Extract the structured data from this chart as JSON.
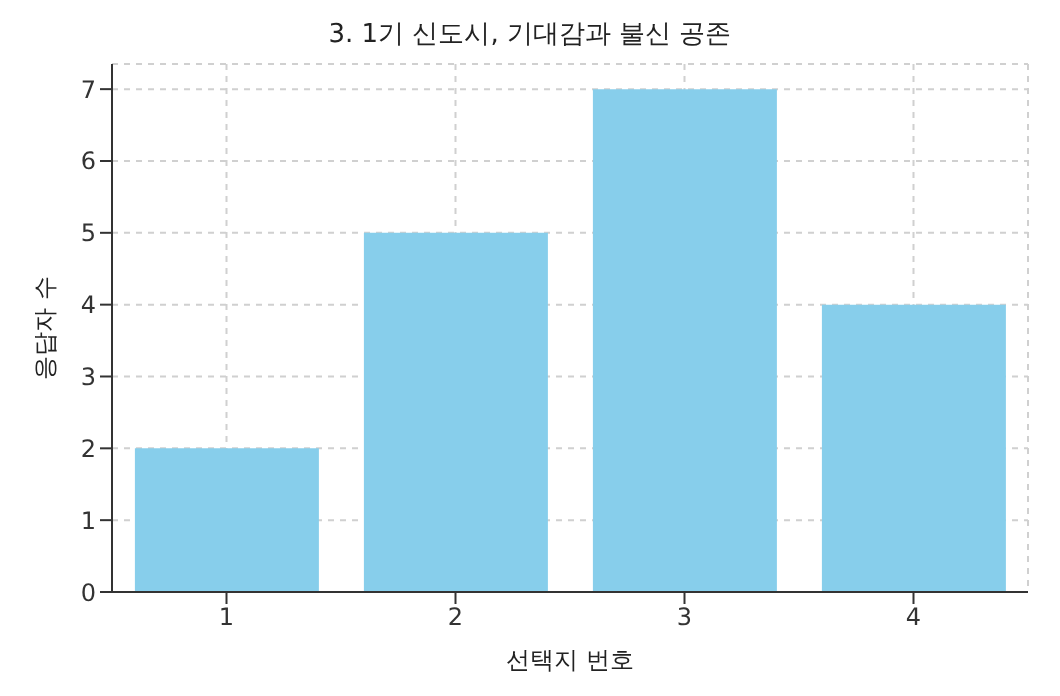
{
  "chart_data": {
    "type": "bar",
    "title": "3. 1기 신도시, 기대감과 불신 공존",
    "xlabel": "선택지 번호",
    "ylabel": "응답자 수",
    "categories": [
      "1",
      "2",
      "3",
      "4"
    ],
    "values": [
      2,
      5,
      7,
      4
    ],
    "color": "#87ceeb",
    "ylim": [
      0,
      7.35
    ],
    "yticks": [
      0,
      1,
      2,
      3,
      4,
      5,
      6,
      7
    ],
    "grid": true
  }
}
